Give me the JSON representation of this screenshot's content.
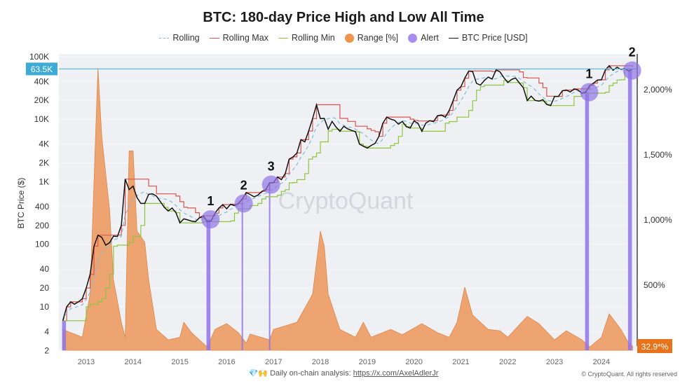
{
  "chart_data": {
    "type": "line",
    "title": "BTC: 180-day Price High and Low All Time",
    "ylabel": "BTC Price ($)",
    "y_scale": "log",
    "ylim": [
      2,
      100000
    ],
    "y_ticks": [
      "100K",
      "40K",
      "20K",
      "10K",
      "4K",
      "2K",
      "1K",
      "400",
      "200",
      "100",
      "40",
      "20",
      "10",
      "4",
      "2"
    ],
    "y_tick_values": [
      100000,
      40000,
      20000,
      10000,
      4000,
      2000,
      1000,
      400,
      200,
      100,
      40,
      20,
      10,
      4,
      2
    ],
    "y2_ticks": [
      "2,000%",
      "1,500%",
      "1,000%",
      "500%"
    ],
    "y2_tick_values": [
      2000,
      1500,
      1000,
      500
    ],
    "x_ticks": [
      "2013",
      "2014",
      "2015",
      "2016",
      "2017",
      "2018",
      "2019",
      "2020",
      "2021",
      "2022",
      "2023",
      "2024"
    ],
    "xlim": [
      "2012-06",
      "2024-10"
    ],
    "grid": true,
    "legend_position": "top",
    "legend": [
      {
        "name": "Rolling",
        "style": "dashed",
        "color": "#7fbcd8"
      },
      {
        "name": "Rolling Max",
        "style": "line",
        "color": "#d9534f"
      },
      {
        "name": "Rolling Min",
        "style": "line",
        "color": "#8cc63f"
      },
      {
        "name": "Range [%]",
        "style": "dot",
        "color": "#f0944d"
      },
      {
        "name": "Alert",
        "style": "dot",
        "color": "#a98ef0"
      },
      {
        "name": "BTC Price [USD]",
        "style": "line",
        "color": "#111111"
      }
    ],
    "current_price_label": "63.5K",
    "current_price": 63500,
    "current_range_label": "32.9*%",
    "colors": {
      "price": "#111111",
      "rolling": "#7fbcd8",
      "max": "#d9534f",
      "min": "#8cc63f",
      "range": "#eea06a",
      "alert": "#8f74e6",
      "current_line": "#5bbbe0",
      "current_label_bg": "#3eaad6",
      "range_label_bg": "#e8731a",
      "plot_bg": "#eff0f3"
    },
    "price": [
      [
        "2012-07",
        6
      ],
      [
        "2012-08",
        10
      ],
      [
        "2012-09",
        12
      ],
      [
        "2012-10",
        11
      ],
      [
        "2012-11",
        12
      ],
      [
        "2012-12",
        13.5
      ],
      [
        "2013-01",
        20
      ],
      [
        "2013-02",
        33
      ],
      [
        "2013-03",
        93
      ],
      [
        "2013-04",
        140
      ],
      [
        "2013-05",
        129
      ],
      [
        "2013-06",
        97
      ],
      [
        "2013-07",
        106
      ],
      [
        "2013-08",
        135
      ],
      [
        "2013-09",
        133
      ],
      [
        "2013-10",
        200
      ],
      [
        "2013-11",
        1100
      ],
      [
        "2013-12",
        750
      ],
      [
        "2014-01",
        850
      ],
      [
        "2014-02",
        560
      ],
      [
        "2014-03",
        450
      ],
      [
        "2014-04",
        450
      ],
      [
        "2014-05",
        630
      ],
      [
        "2014-06",
        640
      ],
      [
        "2014-07",
        590
      ],
      [
        "2014-08",
        480
      ],
      [
        "2014-09",
        390
      ],
      [
        "2014-10",
        340
      ],
      [
        "2014-11",
        380
      ],
      [
        "2014-12",
        320
      ],
      [
        "2015-01",
        220
      ],
      [
        "2015-02",
        255
      ],
      [
        "2015-03",
        245
      ],
      [
        "2015-04",
        235
      ],
      [
        "2015-05",
        230
      ],
      [
        "2015-06",
        265
      ],
      [
        "2015-07",
        285
      ],
      [
        "2015-08",
        230
      ],
      [
        "2015-09",
        236
      ],
      [
        "2015-10",
        315
      ],
      [
        "2015-11",
        380
      ],
      [
        "2015-12",
        430
      ],
      [
        "2016-01",
        370
      ],
      [
        "2016-02",
        437
      ],
      [
        "2016-03",
        415
      ],
      [
        "2016-04",
        450
      ],
      [
        "2016-05",
        530
      ],
      [
        "2016-06",
        670
      ],
      [
        "2016-07",
        625
      ],
      [
        "2016-08",
        575
      ],
      [
        "2016-09",
        610
      ],
      [
        "2016-10",
        700
      ],
      [
        "2016-11",
        745
      ],
      [
        "2016-12",
        960
      ],
      [
        "2017-01",
        970
      ],
      [
        "2017-02",
        1190
      ],
      [
        "2017-03",
        1080
      ],
      [
        "2017-04",
        1350
      ],
      [
        "2017-05",
        2300
      ],
      [
        "2017-06",
        2500
      ],
      [
        "2017-07",
        2880
      ],
      [
        "2017-08",
        4700
      ],
      [
        "2017-09",
        4340
      ],
      [
        "2017-10",
        6470
      ],
      [
        "2017-11",
        10200
      ],
      [
        "2017-12",
        17000
      ],
      [
        "2018-01",
        10200
      ],
      [
        "2018-02",
        10300
      ],
      [
        "2018-03",
        6900
      ],
      [
        "2018-04",
        9200
      ],
      [
        "2018-05",
        7500
      ],
      [
        "2018-06",
        6400
      ],
      [
        "2018-07",
        7700
      ],
      [
        "2018-08",
        7000
      ],
      [
        "2018-09",
        6600
      ],
      [
        "2018-10",
        6300
      ],
      [
        "2018-11",
        4000
      ],
      [
        "2018-12",
        3700
      ],
      [
        "2019-01",
        3450
      ],
      [
        "2019-02",
        3800
      ],
      [
        "2019-03",
        4100
      ],
      [
        "2019-04",
        5300
      ],
      [
        "2019-05",
        8600
      ],
      [
        "2019-06",
        10800
      ],
      [
        "2019-07",
        10000
      ],
      [
        "2019-08",
        9600
      ],
      [
        "2019-09",
        8300
      ],
      [
        "2019-10",
        9200
      ],
      [
        "2019-11",
        7600
      ],
      [
        "2019-12",
        7200
      ],
      [
        "2020-01",
        9350
      ],
      [
        "2020-02",
        8600
      ],
      [
        "2020-03",
        6400
      ],
      [
        "2020-04",
        8600
      ],
      [
        "2020-05",
        9450
      ],
      [
        "2020-06",
        9140
      ],
      [
        "2020-07",
        11350
      ],
      [
        "2020-08",
        11650
      ],
      [
        "2020-09",
        10780
      ],
      [
        "2020-10",
        13800
      ],
      [
        "2020-11",
        19700
      ],
      [
        "2020-12",
        29000
      ],
      [
        "2021-01",
        33100
      ],
      [
        "2021-02",
        45200
      ],
      [
        "2021-03",
        58800
      ],
      [
        "2021-04",
        57700
      ],
      [
        "2021-05",
        37300
      ],
      [
        "2021-06",
        35000
      ],
      [
        "2021-07",
        41500
      ],
      [
        "2021-08",
        47100
      ],
      [
        "2021-09",
        43800
      ],
      [
        "2021-10",
        61300
      ],
      [
        "2021-11",
        57000
      ],
      [
        "2021-12",
        46300
      ],
      [
        "2022-01",
        38500
      ],
      [
        "2022-02",
        43200
      ],
      [
        "2022-03",
        45500
      ],
      [
        "2022-04",
        37700
      ],
      [
        "2022-05",
        31800
      ],
      [
        "2022-06",
        19800
      ],
      [
        "2022-07",
        23300
      ],
      [
        "2022-08",
        20000
      ],
      [
        "2022-09",
        19400
      ],
      [
        "2022-10",
        20500
      ],
      [
        "2022-11",
        17200
      ],
      [
        "2022-12",
        16500
      ],
      [
        "2023-01",
        23100
      ],
      [
        "2023-02",
        23100
      ],
      [
        "2023-03",
        28500
      ],
      [
        "2023-04",
        29200
      ],
      [
        "2023-05",
        27200
      ],
      [
        "2023-06",
        30500
      ],
      [
        "2023-07",
        29200
      ],
      [
        "2023-08",
        26000
      ],
      [
        "2023-09",
        27000
      ],
      [
        "2023-10",
        34500
      ],
      [
        "2023-11",
        37700
      ],
      [
        "2023-12",
        42300
      ],
      [
        "2024-01",
        42600
      ],
      [
        "2024-02",
        61200
      ],
      [
        "2024-03",
        71300
      ],
      [
        "2024-04",
        60600
      ],
      [
        "2024-05",
        67500
      ],
      [
        "2024-06",
        62700
      ],
      [
        "2024-07",
        64600
      ],
      [
        "2024-08",
        59000
      ],
      [
        "2024-09",
        63500
      ]
    ],
    "range_pct": [
      [
        "2012-07",
        160
      ],
      [
        "2012-12",
        100
      ],
      [
        "2013-02",
        430
      ],
      [
        "2013-04",
        2166
      ],
      [
        "2013-05",
        1640
      ],
      [
        "2013-07",
        1075
      ],
      [
        "2013-08",
        540
      ],
      [
        "2013-10",
        215
      ],
      [
        "2013-11",
        100
      ],
      [
        "2013-12",
        1530
      ],
      [
        "2014-01",
        1530
      ],
      [
        "2014-02",
        915
      ],
      [
        "2014-04",
        830
      ],
      [
        "2014-05",
        540
      ],
      [
        "2014-07",
        160
      ],
      [
        "2014-10",
        80
      ],
      [
        "2015-01",
        100
      ],
      [
        "2015-02",
        215
      ],
      [
        "2015-04",
        135
      ],
      [
        "2015-08",
        25
      ],
      [
        "2015-10",
        160
      ],
      [
        "2016-01",
        205
      ],
      [
        "2016-04",
        135
      ],
      [
        "2016-06",
        55
      ],
      [
        "2016-07",
        125
      ],
      [
        "2016-12",
        80
      ],
      [
        "2017-01",
        160
      ],
      [
        "2017-07",
        215
      ],
      [
        "2017-11",
        430
      ],
      [
        "2018-01",
        915
      ],
      [
        "2018-02",
        800
      ],
      [
        "2018-03",
        430
      ],
      [
        "2018-06",
        160
      ],
      [
        "2018-10",
        100
      ],
      [
        "2018-12",
        215
      ],
      [
        "2019-02",
        100
      ],
      [
        "2019-07",
        160
      ],
      [
        "2019-10",
        120
      ],
      [
        "2020-03",
        205
      ],
      [
        "2020-07",
        135
      ],
      [
        "2020-10",
        100
      ],
      [
        "2020-12",
        215
      ],
      [
        "2021-02",
        485
      ],
      [
        "2021-04",
        270
      ],
      [
        "2021-08",
        160
      ],
      [
        "2021-11",
        150
      ],
      [
        "2022-01",
        100
      ],
      [
        "2022-06",
        260
      ],
      [
        "2022-09",
        205
      ],
      [
        "2023-01",
        80
      ],
      [
        "2023-04",
        150
      ],
      [
        "2023-08",
        80
      ],
      [
        "2023-10",
        25
      ],
      [
        "2024-01",
        100
      ],
      [
        "2024-03",
        280
      ],
      [
        "2024-06",
        160
      ],
      [
        "2024-08",
        55
      ],
      [
        "2024-09",
        33
      ]
    ],
    "alerts": [
      {
        "start": "2012-07",
        "end": "2012-08",
        "price": 6,
        "label": ""
      },
      {
        "start": "2015-08",
        "end": "2015-09",
        "price": 250,
        "label": "1"
      },
      {
        "start": "2016-05",
        "end": "2016-05",
        "price": 450,
        "label": "2"
      },
      {
        "start": "2016-12",
        "end": "2016-12",
        "price": 900,
        "label": "3"
      },
      {
        "start": "2023-09",
        "end": "2023-10",
        "price": 27000,
        "label": "1"
      },
      {
        "start": "2024-08",
        "end": "2024-09",
        "price": 60000,
        "label": "2"
      }
    ],
    "watermark": "CryptoQuant"
  },
  "footer": {
    "emoji": "💎🙌",
    "text": "Daily on-chain analysis: ",
    "link": "https://x.com/AxelAdlerJr"
  },
  "copyright": "© CryptoQuant. All rights reserved"
}
